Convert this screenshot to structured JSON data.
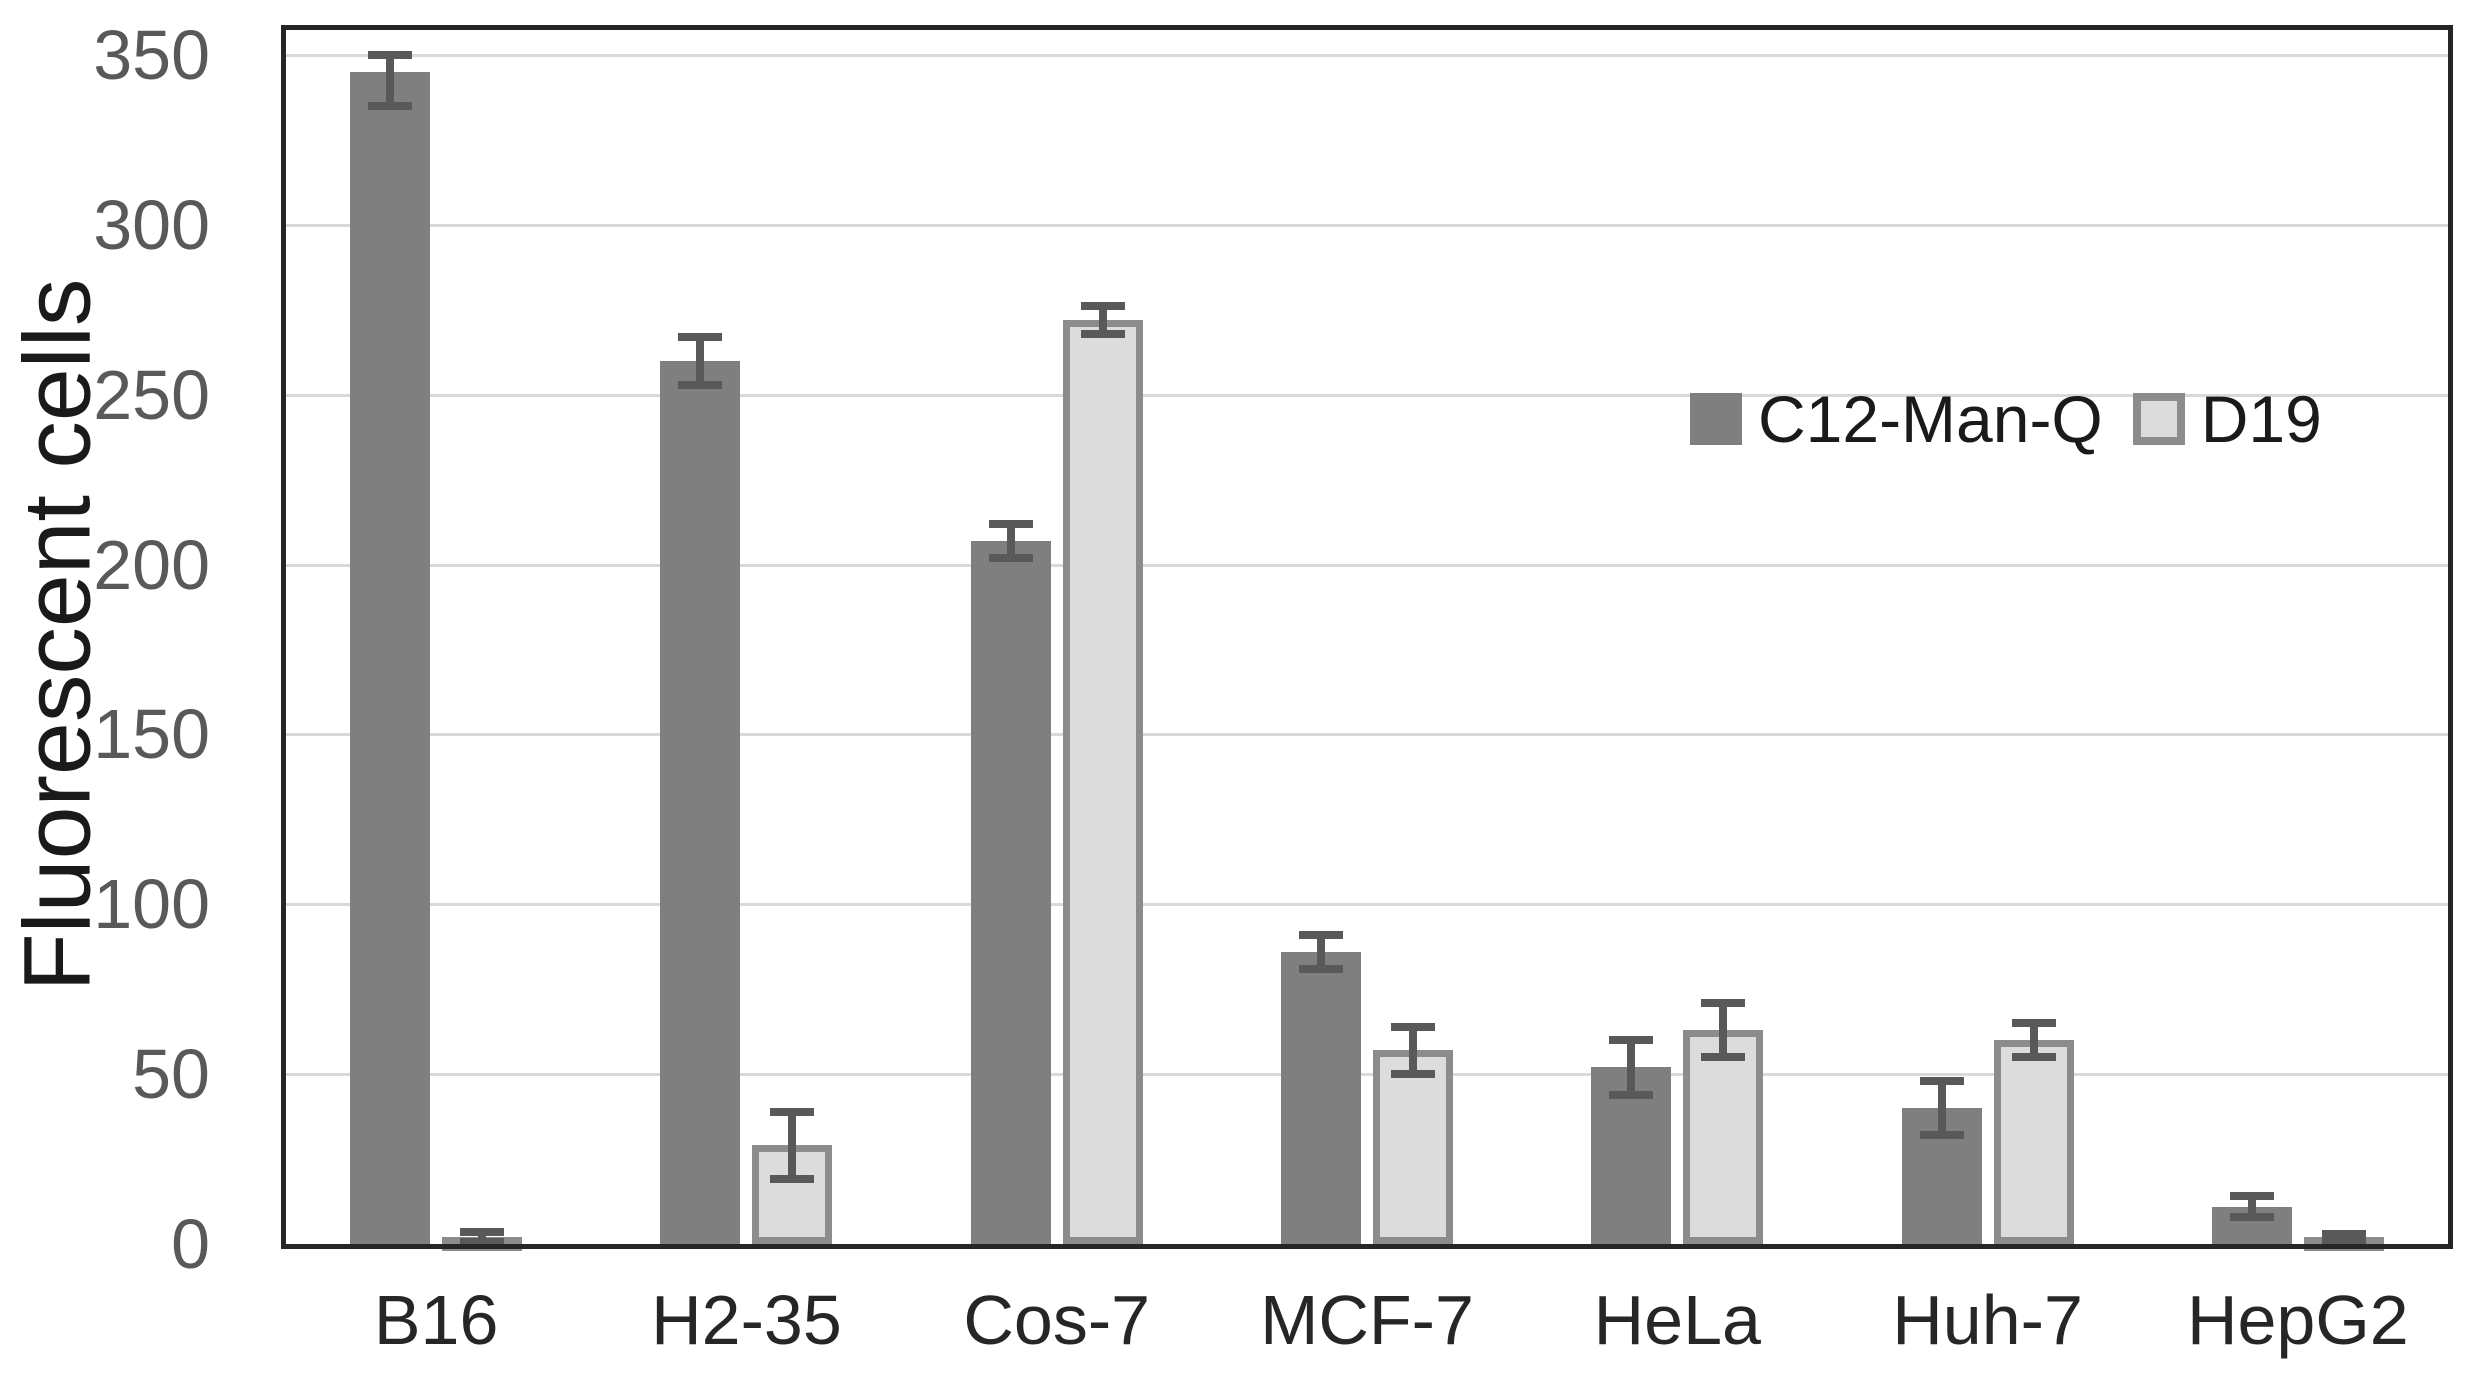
{
  "chart_data": {
    "type": "bar",
    "title": "",
    "xlabel": "",
    "ylabel": "Fluorescent cells",
    "ylim": [
      0,
      350
    ],
    "ytick_step": 50,
    "yticks": [
      0,
      50,
      100,
      150,
      200,
      250,
      300,
      350
    ],
    "grid": "horizontal-major",
    "legend_position": "inside-upper-right",
    "categories": [
      "B16",
      "H2-35",
      "Cos-7",
      "MCF-7",
      "HeLa",
      "Huh-7",
      "HepG2"
    ],
    "series": [
      {
        "name": "C12-Man-Q",
        "fill": "#7f7f7f",
        "border": "none",
        "values": [
          345,
          260,
          207,
          86,
          52,
          40,
          11
        ],
        "errors": [
          10,
          7,
          5,
          5,
          8,
          8,
          3
        ]
      },
      {
        "name": "D19",
        "fill": "#dcdcdc",
        "border": "#8c8c8c",
        "values": [
          2,
          29,
          272,
          57,
          63,
          60,
          2
        ],
        "errors": [
          1.5,
          10,
          4,
          7,
          8,
          5,
          1
        ]
      }
    ],
    "error_bars": true
  },
  "colors": {
    "background": "#ffffff",
    "plot_border": "#262626",
    "gridline": "#d9d9d9",
    "error_bar": "#595959",
    "y_tick_label": "#595959",
    "x_tick_label": "#262626",
    "y_title": "#1a1a1a",
    "legend_text": "#1a1a1a"
  }
}
